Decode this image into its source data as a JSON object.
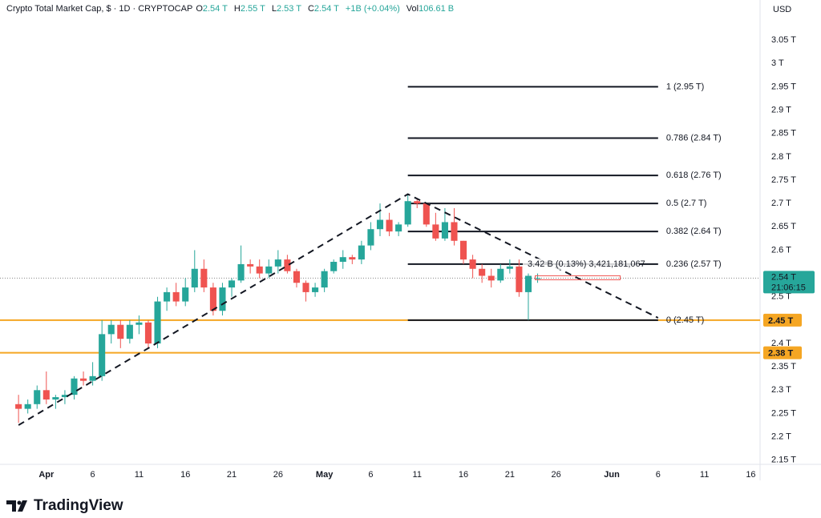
{
  "chart_data": {
    "type": "candlestick",
    "title": "Crypto Total Market Cap, $ · 1D · CRYPTOCAP",
    "header_values": [
      {
        "key": "O",
        "text": "2.54 T"
      },
      {
        "key": "H",
        "text": "2.55 T"
      },
      {
        "key": "L",
        "text": "2.53 T"
      },
      {
        "key": "C",
        "text": "2.54 T"
      },
      {
        "key": "",
        "text": "+1B (+0.04%)"
      },
      {
        "key": "Vol",
        "text": "106.61 B"
      }
    ],
    "currency": "USD",
    "brand": "TradingView",
    "up_color": "#26a69a",
    "down_color": "#ef5350",
    "x": [
      "03-29",
      "03-30",
      "03-31",
      "04-01",
      "04-02",
      "04-03",
      "04-04",
      "04-05",
      "04-06",
      "04-07",
      "04-08",
      "04-09",
      "04-10",
      "04-11",
      "04-12",
      "04-13",
      "04-14",
      "04-15",
      "04-16",
      "04-17",
      "04-18",
      "04-19",
      "04-20",
      "04-21",
      "04-22",
      "04-23",
      "04-24",
      "04-25",
      "04-26",
      "04-27",
      "04-28",
      "04-29",
      "04-30",
      "05-01",
      "05-02",
      "05-03",
      "05-04",
      "05-05",
      "05-06",
      "05-07",
      "05-08",
      "05-09",
      "05-10",
      "05-11",
      "05-12",
      "05-13",
      "05-14",
      "05-15",
      "05-16",
      "05-17",
      "05-18",
      "05-19",
      "05-20",
      "05-21",
      "05-22",
      "05-23",
      "05-24"
    ],
    "open": [
      2.27,
      2.26,
      2.27,
      2.3,
      2.28,
      2.285,
      2.29,
      2.325,
      2.32,
      2.33,
      2.42,
      2.44,
      2.41,
      2.44,
      2.445,
      2.4,
      2.49,
      2.51,
      2.49,
      2.52,
      2.56,
      2.52,
      2.47,
      2.52,
      2.535,
      2.57,
      2.565,
      2.55,
      2.565,
      2.58,
      2.555,
      2.53,
      2.51,
      2.52,
      2.555,
      2.575,
      2.585,
      2.58,
      2.61,
      2.645,
      2.665,
      2.64,
      2.655,
      2.705,
      2.7,
      2.655,
      2.625,
      2.66,
      2.62,
      2.58,
      2.56,
      2.545,
      2.535,
      2.56,
      2.565,
      2.51,
      2.54
    ],
    "high": [
      2.29,
      2.28,
      2.31,
      2.34,
      2.29,
      2.3,
      2.33,
      2.34,
      2.36,
      2.45,
      2.45,
      2.45,
      2.45,
      2.46,
      2.45,
      2.5,
      2.52,
      2.53,
      2.54,
      2.6,
      2.58,
      2.53,
      2.53,
      2.54,
      2.61,
      2.58,
      2.58,
      2.58,
      2.6,
      2.59,
      2.56,
      2.535,
      2.53,
      2.56,
      2.58,
      2.6,
      2.59,
      2.62,
      2.66,
      2.7,
      2.68,
      2.66,
      2.72,
      2.71,
      2.7,
      2.68,
      2.69,
      2.69,
      2.62,
      2.59,
      2.57,
      2.56,
      2.57,
      2.58,
      2.58,
      2.55,
      2.55
    ],
    "low": [
      2.23,
      2.25,
      2.26,
      2.27,
      2.26,
      2.27,
      2.28,
      2.31,
      2.31,
      2.32,
      2.4,
      2.39,
      2.4,
      2.42,
      2.39,
      2.39,
      2.47,
      2.48,
      2.48,
      2.51,
      2.51,
      2.46,
      2.46,
      2.5,
      2.53,
      2.55,
      2.54,
      2.54,
      2.55,
      2.55,
      2.52,
      2.49,
      2.5,
      2.51,
      2.55,
      2.56,
      2.57,
      2.57,
      2.6,
      2.63,
      2.63,
      2.63,
      2.65,
      2.69,
      2.65,
      2.62,
      2.62,
      2.61,
      2.57,
      2.54,
      2.53,
      2.52,
      2.53,
      2.55,
      2.5,
      2.45,
      2.53
    ],
    "close": [
      2.26,
      2.27,
      2.3,
      2.28,
      2.285,
      2.29,
      2.325,
      2.32,
      2.33,
      2.42,
      2.44,
      2.41,
      2.44,
      2.445,
      2.4,
      2.49,
      2.51,
      2.49,
      2.52,
      2.56,
      2.52,
      2.47,
      2.52,
      2.535,
      2.57,
      2.565,
      2.55,
      2.565,
      2.58,
      2.555,
      2.53,
      2.51,
      2.52,
      2.555,
      2.575,
      2.585,
      2.58,
      2.61,
      2.645,
      2.665,
      2.64,
      2.655,
      2.705,
      2.7,
      2.655,
      2.625,
      2.66,
      2.62,
      2.58,
      2.56,
      2.545,
      2.535,
      2.56,
      2.565,
      2.51,
      2.545,
      2.54
    ],
    "xlim": [
      "03-27",
      "06-17"
    ],
    "xticks": [
      {
        "value": "04-01",
        "label": "Apr"
      },
      {
        "value": "04-06",
        "label": "6"
      },
      {
        "value": "04-11",
        "label": "11"
      },
      {
        "value": "04-16",
        "label": "16"
      },
      {
        "value": "04-21",
        "label": "21"
      },
      {
        "value": "04-26",
        "label": "26"
      },
      {
        "value": "05-01",
        "label": "May"
      },
      {
        "value": "05-06",
        "label": "6"
      },
      {
        "value": "05-11",
        "label": "11"
      },
      {
        "value": "05-16",
        "label": "16"
      },
      {
        "value": "05-21",
        "label": "21"
      },
      {
        "value": "05-26",
        "label": "26"
      },
      {
        "value": "06-01",
        "label": "Jun"
      },
      {
        "value": "06-06",
        "label": "6"
      },
      {
        "value": "06-11",
        "label": "11"
      },
      {
        "value": "06-16",
        "label": "16"
      }
    ],
    "ylim": [
      2.141,
      3.136
    ],
    "yticks": [
      {
        "value": 3.05,
        "label": "3.05 T"
      },
      {
        "value": 3.0,
        "label": "3 T"
      },
      {
        "value": 2.95,
        "label": "2.95 T"
      },
      {
        "value": 2.9,
        "label": "2.9 T"
      },
      {
        "value": 2.85,
        "label": "2.85 T"
      },
      {
        "value": 2.8,
        "label": "2.8 T"
      },
      {
        "value": 2.75,
        "label": "2.75 T"
      },
      {
        "value": 2.7,
        "label": "2.7 T"
      },
      {
        "value": 2.65,
        "label": "2.65 T"
      },
      {
        "value": 2.6,
        "label": "2.6 T"
      },
      {
        "value": 2.5,
        "label": "2.5 T"
      },
      {
        "value": 2.4,
        "label": "2.4 T"
      },
      {
        "value": 2.35,
        "label": "2.35 T"
      },
      {
        "value": 2.3,
        "label": "2.3 T"
      },
      {
        "value": 2.25,
        "label": "2.25 T"
      },
      {
        "value": 2.2,
        "label": "2.2 T"
      },
      {
        "value": 2.15,
        "label": "2.15 T"
      }
    ],
    "grid": false,
    "fib_start": "05-10",
    "fib_end": "06-06",
    "fib_levels": [
      {
        "value": 2.95,
        "label": "1 (2.95 T)"
      },
      {
        "value": 2.84,
        "label": "0.786 (2.84 T)"
      },
      {
        "value": 2.76,
        "label": "0.618 (2.76 T)"
      },
      {
        "value": 2.7,
        "label": "0.5 (2.7 T)"
      },
      {
        "value": 2.64,
        "label": "0.382 (2.64 T)"
      },
      {
        "value": 2.57,
        "label": "0.236 (2.57 T)"
      },
      {
        "value": 2.45,
        "label": "0 (2.45 T)"
      }
    ],
    "support_color": "#f5a623",
    "support_levels": [
      {
        "value": 2.45,
        "label": "2.45 T"
      },
      {
        "value": 2.38,
        "label": "2.38 T"
      }
    ],
    "last_price": {
      "value": 2.54,
      "label": "2.54 T"
    },
    "countdown": "21:06:15",
    "trendline": {
      "x": [
        "03-29",
        "05-10",
        "06-06"
      ],
      "y": [
        2.225,
        2.72,
        2.455
      ]
    },
    "measure_label": "3.42 B (0.13%) 3,421,181,067"
  }
}
